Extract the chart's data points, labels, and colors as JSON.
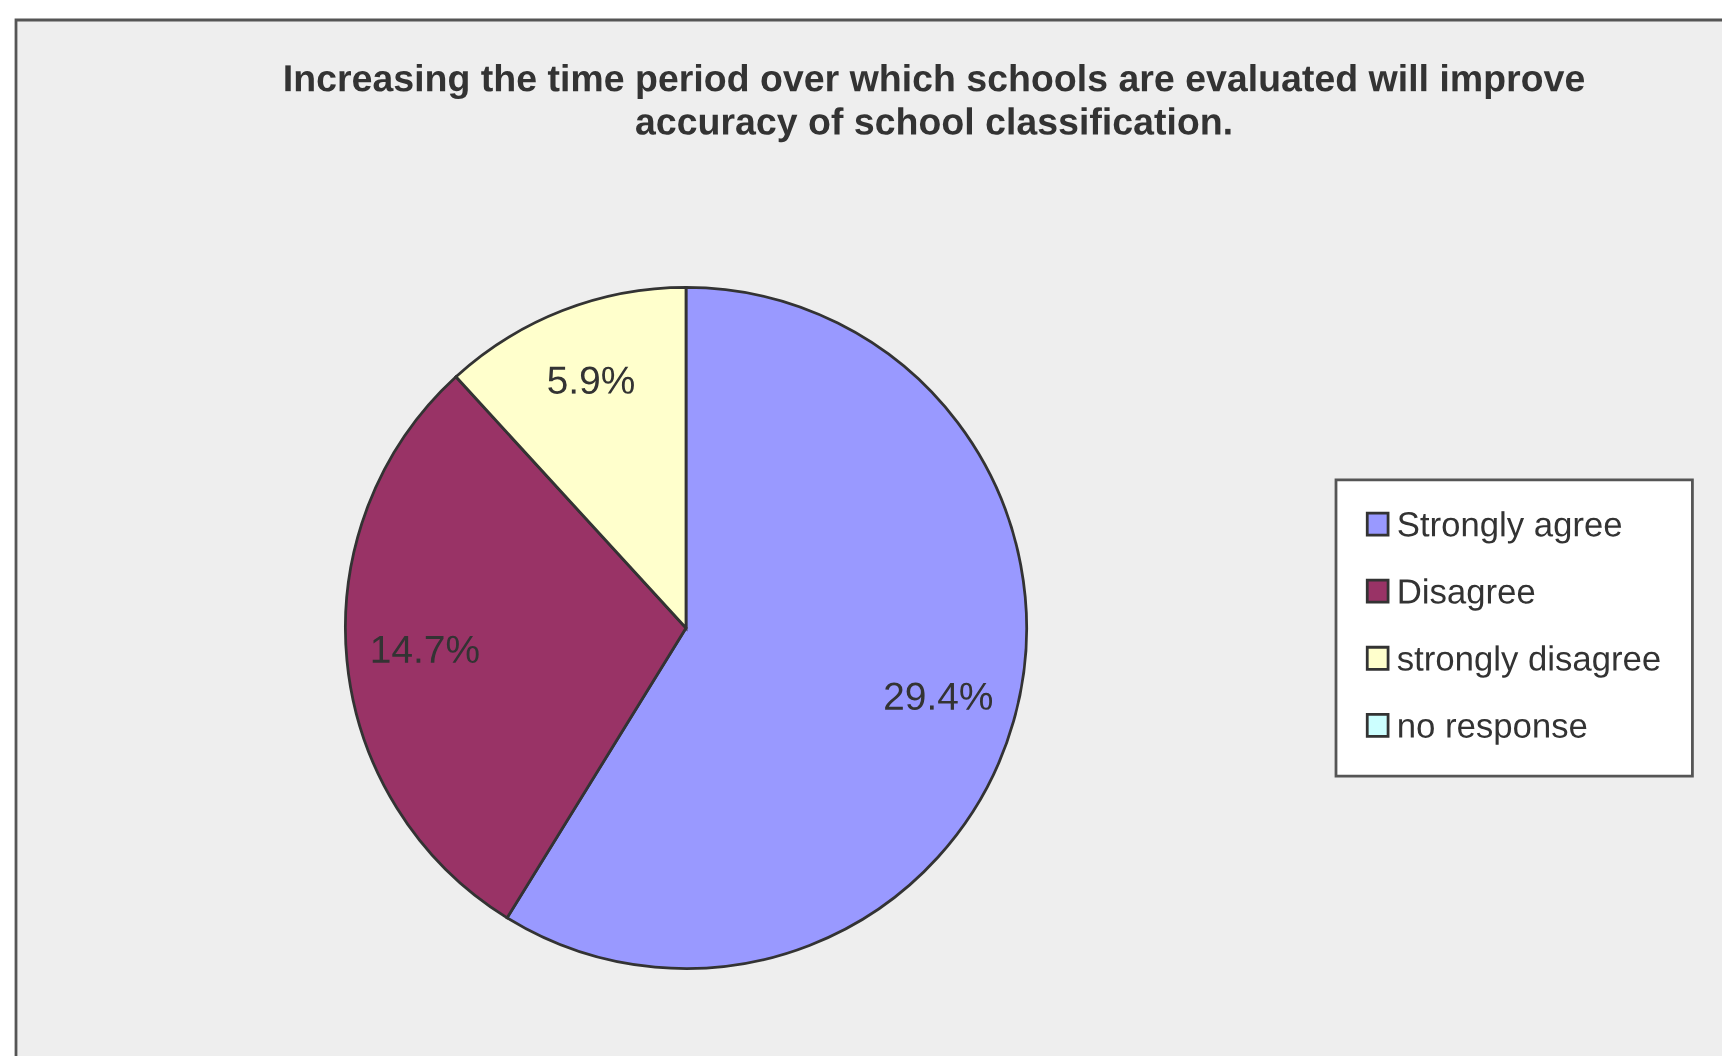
{
  "chart_data": {
    "type": "pie",
    "title": "Increasing the time period over which schools are evaluated will improve\naccuracy of school classification.",
    "categories": [
      "Strongly agree",
      "Disagree",
      "strongly disagree",
      "no response"
    ],
    "values": [
      29.4,
      14.7,
      5.9,
      0
    ],
    "colors": [
      "#9999ff",
      "#993366",
      "#ffffcc",
      "#ccffff"
    ],
    "value_labels": [
      "29.4%",
      "14.7%",
      "5.9%",
      null
    ],
    "legend": "right"
  }
}
